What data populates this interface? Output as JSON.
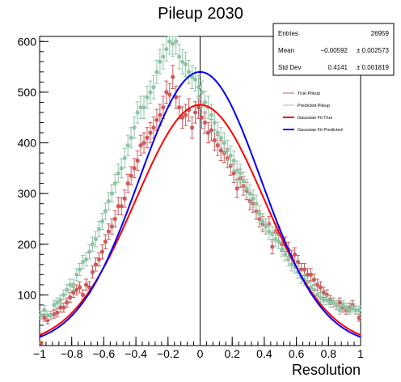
{
  "chart_data": {
    "type": "scatter",
    "title": "Pileup 2030",
    "xlabel": "Resolution",
    "ylabel": "",
    "xlim": [
      -1,
      1
    ],
    "ylim": [
      0,
      610
    ],
    "xticks": [
      -1,
      -0.8,
      -0.6,
      -0.4,
      -0.2,
      0,
      0.2,
      0.4,
      0.6,
      0.8,
      1
    ],
    "xtick_labels": [
      "−1",
      "−0.8",
      "−0.6",
      "−0.4",
      "−0.2",
      "0",
      "0.2",
      "0.4",
      "0.6",
      "0.8",
      "1"
    ],
    "yticks": [
      100,
      200,
      300,
      400,
      500,
      600
    ],
    "ytick_labels": [
      "100",
      "200",
      "300",
      "400",
      "500",
      "600"
    ],
    "vertical_line_x": 0,
    "series": [
      {
        "name": "True Pileup",
        "kind": "points_with_errors",
        "color": "#cc5a5a",
        "x": [
          -0.99,
          -0.97,
          -0.95,
          -0.93,
          -0.91,
          -0.89,
          -0.87,
          -0.85,
          -0.83,
          -0.81,
          -0.79,
          -0.77,
          -0.75,
          -0.73,
          -0.71,
          -0.69,
          -0.67,
          -0.65,
          -0.63,
          -0.61,
          -0.59,
          -0.57,
          -0.55,
          -0.53,
          -0.51,
          -0.49,
          -0.47,
          -0.45,
          -0.43,
          -0.41,
          -0.39,
          -0.37,
          -0.35,
          -0.33,
          -0.31,
          -0.29,
          -0.27,
          -0.25,
          -0.23,
          -0.21,
          -0.19,
          -0.17,
          -0.15,
          -0.13,
          -0.11,
          -0.09,
          -0.07,
          -0.05,
          -0.03,
          -0.01,
          0.01,
          0.03,
          0.05,
          0.07,
          0.09,
          0.11,
          0.13,
          0.15,
          0.17,
          0.19,
          0.21,
          0.23,
          0.25,
          0.27,
          0.29,
          0.31,
          0.33,
          0.35,
          0.37,
          0.39,
          0.41,
          0.43,
          0.45,
          0.47,
          0.49,
          0.51,
          0.53,
          0.55,
          0.57,
          0.59,
          0.61,
          0.63,
          0.65,
          0.67,
          0.69,
          0.71,
          0.73,
          0.75,
          0.77,
          0.79,
          0.81,
          0.83,
          0.85,
          0.87,
          0.89,
          0.91,
          0.93,
          0.95,
          0.97,
          0.99
        ],
        "y": [
          5,
          55,
          50,
          60,
          62,
          65,
          75,
          75,
          85,
          95,
          105,
          110,
          115,
          100,
          120,
          115,
          145,
          160,
          170,
          185,
          205,
          225,
          235,
          250,
          275,
          275,
          290,
          320,
          335,
          350,
          365,
          395,
          400,
          410,
          420,
          430,
          445,
          455,
          470,
          500,
          495,
          530,
          490,
          470,
          450,
          455,
          465,
          430,
          460,
          470,
          450,
          440,
          420,
          425,
          405,
          395,
          385,
          380,
          370,
          355,
          340,
          310,
          330,
          315,
          305,
          285,
          280,
          265,
          250,
          240,
          235,
          240,
          195,
          225,
          220,
          200,
          200,
          190,
          175,
          180,
          165,
          150,
          150,
          140,
          140,
          130,
          120,
          115,
          105,
          100,
          90,
          85,
          80,
          85,
          75,
          70,
          75,
          80,
          70,
          55
        ],
        "yerr": [
          2,
          7,
          7,
          8,
          8,
          8,
          9,
          9,
          9,
          10,
          10,
          10,
          11,
          10,
          11,
          11,
          12,
          13,
          13,
          14,
          14,
          15,
          15,
          16,
          17,
          17,
          17,
          18,
          18,
          19,
          19,
          20,
          20,
          20,
          20,
          21,
          21,
          21,
          22,
          22,
          22,
          23,
          22,
          22,
          21,
          21,
          22,
          21,
          21,
          22,
          21,
          21,
          20,
          21,
          20,
          20,
          20,
          19,
          19,
          19,
          18,
          18,
          18,
          18,
          17,
          17,
          17,
          16,
          16,
          15,
          15,
          15,
          14,
          15,
          15,
          14,
          14,
          14,
          13,
          13,
          13,
          12,
          12,
          12,
          12,
          11,
          11,
          11,
          10,
          10,
          9,
          9,
          9,
          9,
          9,
          8,
          9,
          9,
          8,
          7
        ]
      },
      {
        "name": "Predicted Pileup",
        "kind": "points_with_errors",
        "color": "#8fc4a6",
        "x": [
          -0.99,
          -0.97,
          -0.95,
          -0.93,
          -0.91,
          -0.89,
          -0.87,
          -0.85,
          -0.83,
          -0.81,
          -0.79,
          -0.77,
          -0.75,
          -0.73,
          -0.71,
          -0.69,
          -0.67,
          -0.65,
          -0.63,
          -0.61,
          -0.59,
          -0.57,
          -0.55,
          -0.53,
          -0.51,
          -0.49,
          -0.47,
          -0.45,
          -0.43,
          -0.41,
          -0.39,
          -0.37,
          -0.35,
          -0.33,
          -0.31,
          -0.29,
          -0.27,
          -0.25,
          -0.23,
          -0.21,
          -0.19,
          -0.17,
          -0.15,
          -0.13,
          -0.11,
          -0.09,
          -0.07,
          -0.05,
          -0.03,
          -0.01,
          0.01,
          0.03,
          0.05,
          0.07,
          0.09,
          0.11,
          0.13,
          0.15,
          0.17,
          0.19,
          0.21,
          0.23,
          0.25,
          0.27,
          0.29,
          0.31,
          0.33,
          0.35,
          0.37,
          0.39,
          0.41,
          0.43,
          0.45,
          0.47,
          0.49,
          0.51,
          0.53,
          0.55,
          0.57,
          0.59,
          0.61,
          0.63,
          0.65,
          0.67,
          0.69,
          0.71,
          0.73,
          0.75,
          0.77,
          0.79,
          0.81,
          0.83,
          0.85,
          0.87,
          0.89,
          0.91,
          0.93,
          0.95,
          0.97,
          0.99
        ],
        "y": [
          60,
          70,
          60,
          60,
          80,
          85,
          90,
          100,
          110,
          120,
          120,
          140,
          150,
          165,
          170,
          185,
          200,
          210,
          230,
          245,
          265,
          285,
          300,
          320,
          340,
          350,
          370,
          395,
          410,
          430,
          460,
          470,
          470,
          490,
          500,
          510,
          540,
          560,
          570,
          585,
          600,
          595,
          600,
          570,
          560,
          555,
          540,
          530,
          525,
          510,
          500,
          480,
          470,
          455,
          440,
          420,
          410,
          400,
          385,
          375,
          365,
          345,
          340,
          325,
          310,
          300,
          290,
          280,
          260,
          245,
          235,
          225,
          220,
          210,
          205,
          190,
          180,
          170,
          160,
          155,
          145,
          135,
          130,
          125,
          115,
          110,
          100,
          95,
          90,
          90,
          85,
          85,
          80,
          70,
          80,
          75,
          70,
          75,
          70,
          70
        ],
        "yerr": [
          8,
          9,
          8,
          8,
          9,
          9,
          10,
          10,
          10,
          11,
          11,
          12,
          12,
          13,
          13,
          14,
          14,
          15,
          15,
          16,
          16,
          17,
          17,
          18,
          18,
          19,
          19,
          20,
          20,
          21,
          21,
          22,
          22,
          22,
          22,
          23,
          23,
          24,
          24,
          24,
          25,
          24,
          25,
          24,
          24,
          24,
          23,
          23,
          23,
          23,
          22,
          22,
          22,
          21,
          21,
          21,
          20,
          20,
          20,
          19,
          19,
          19,
          18,
          18,
          18,
          17,
          17,
          17,
          16,
          16,
          15,
          15,
          15,
          15,
          14,
          14,
          13,
          13,
          13,
          12,
          12,
          12,
          11,
          11,
          11,
          10,
          10,
          10,
          10,
          9,
          9,
          9,
          9,
          8,
          9,
          9,
          8,
          9,
          8,
          8
        ]
      },
      {
        "name": "Gaussian Fit True",
        "kind": "gaussian_curve",
        "color": "#ff0000",
        "amplitude": 475,
        "mean": 0.0,
        "sigma": 0.4
      },
      {
        "name": "Gaussian Fit Predicted",
        "kind": "gaussian_curve",
        "color": "#0000ff",
        "amplitude": 540,
        "mean": 0.0,
        "sigma": 0.38
      }
    ],
    "stats_box": {
      "rows": [
        {
          "label": "Entries",
          "value": "26959",
          "error": ""
        },
        {
          "label": "Mean",
          "value": "−0.00592",
          "error": "± 0.002573"
        },
        {
          "label": "Std Dev",
          "value": "0.4141",
          "error": "± 0.001819"
        }
      ]
    },
    "legend": {
      "placement": "top-right",
      "entries": [
        {
          "label": "True Pileup",
          "color": "#cc5a5a",
          "style": "marker"
        },
        {
          "label": "Predicted Pileup",
          "color": "#8fc4a6",
          "style": "marker"
        },
        {
          "label": "Gaussian Fit True",
          "color": "#ff0000",
          "style": "line"
        },
        {
          "label": "Gaussian Fit Predicted",
          "color": "#0000ff",
          "style": "line"
        }
      ]
    }
  }
}
